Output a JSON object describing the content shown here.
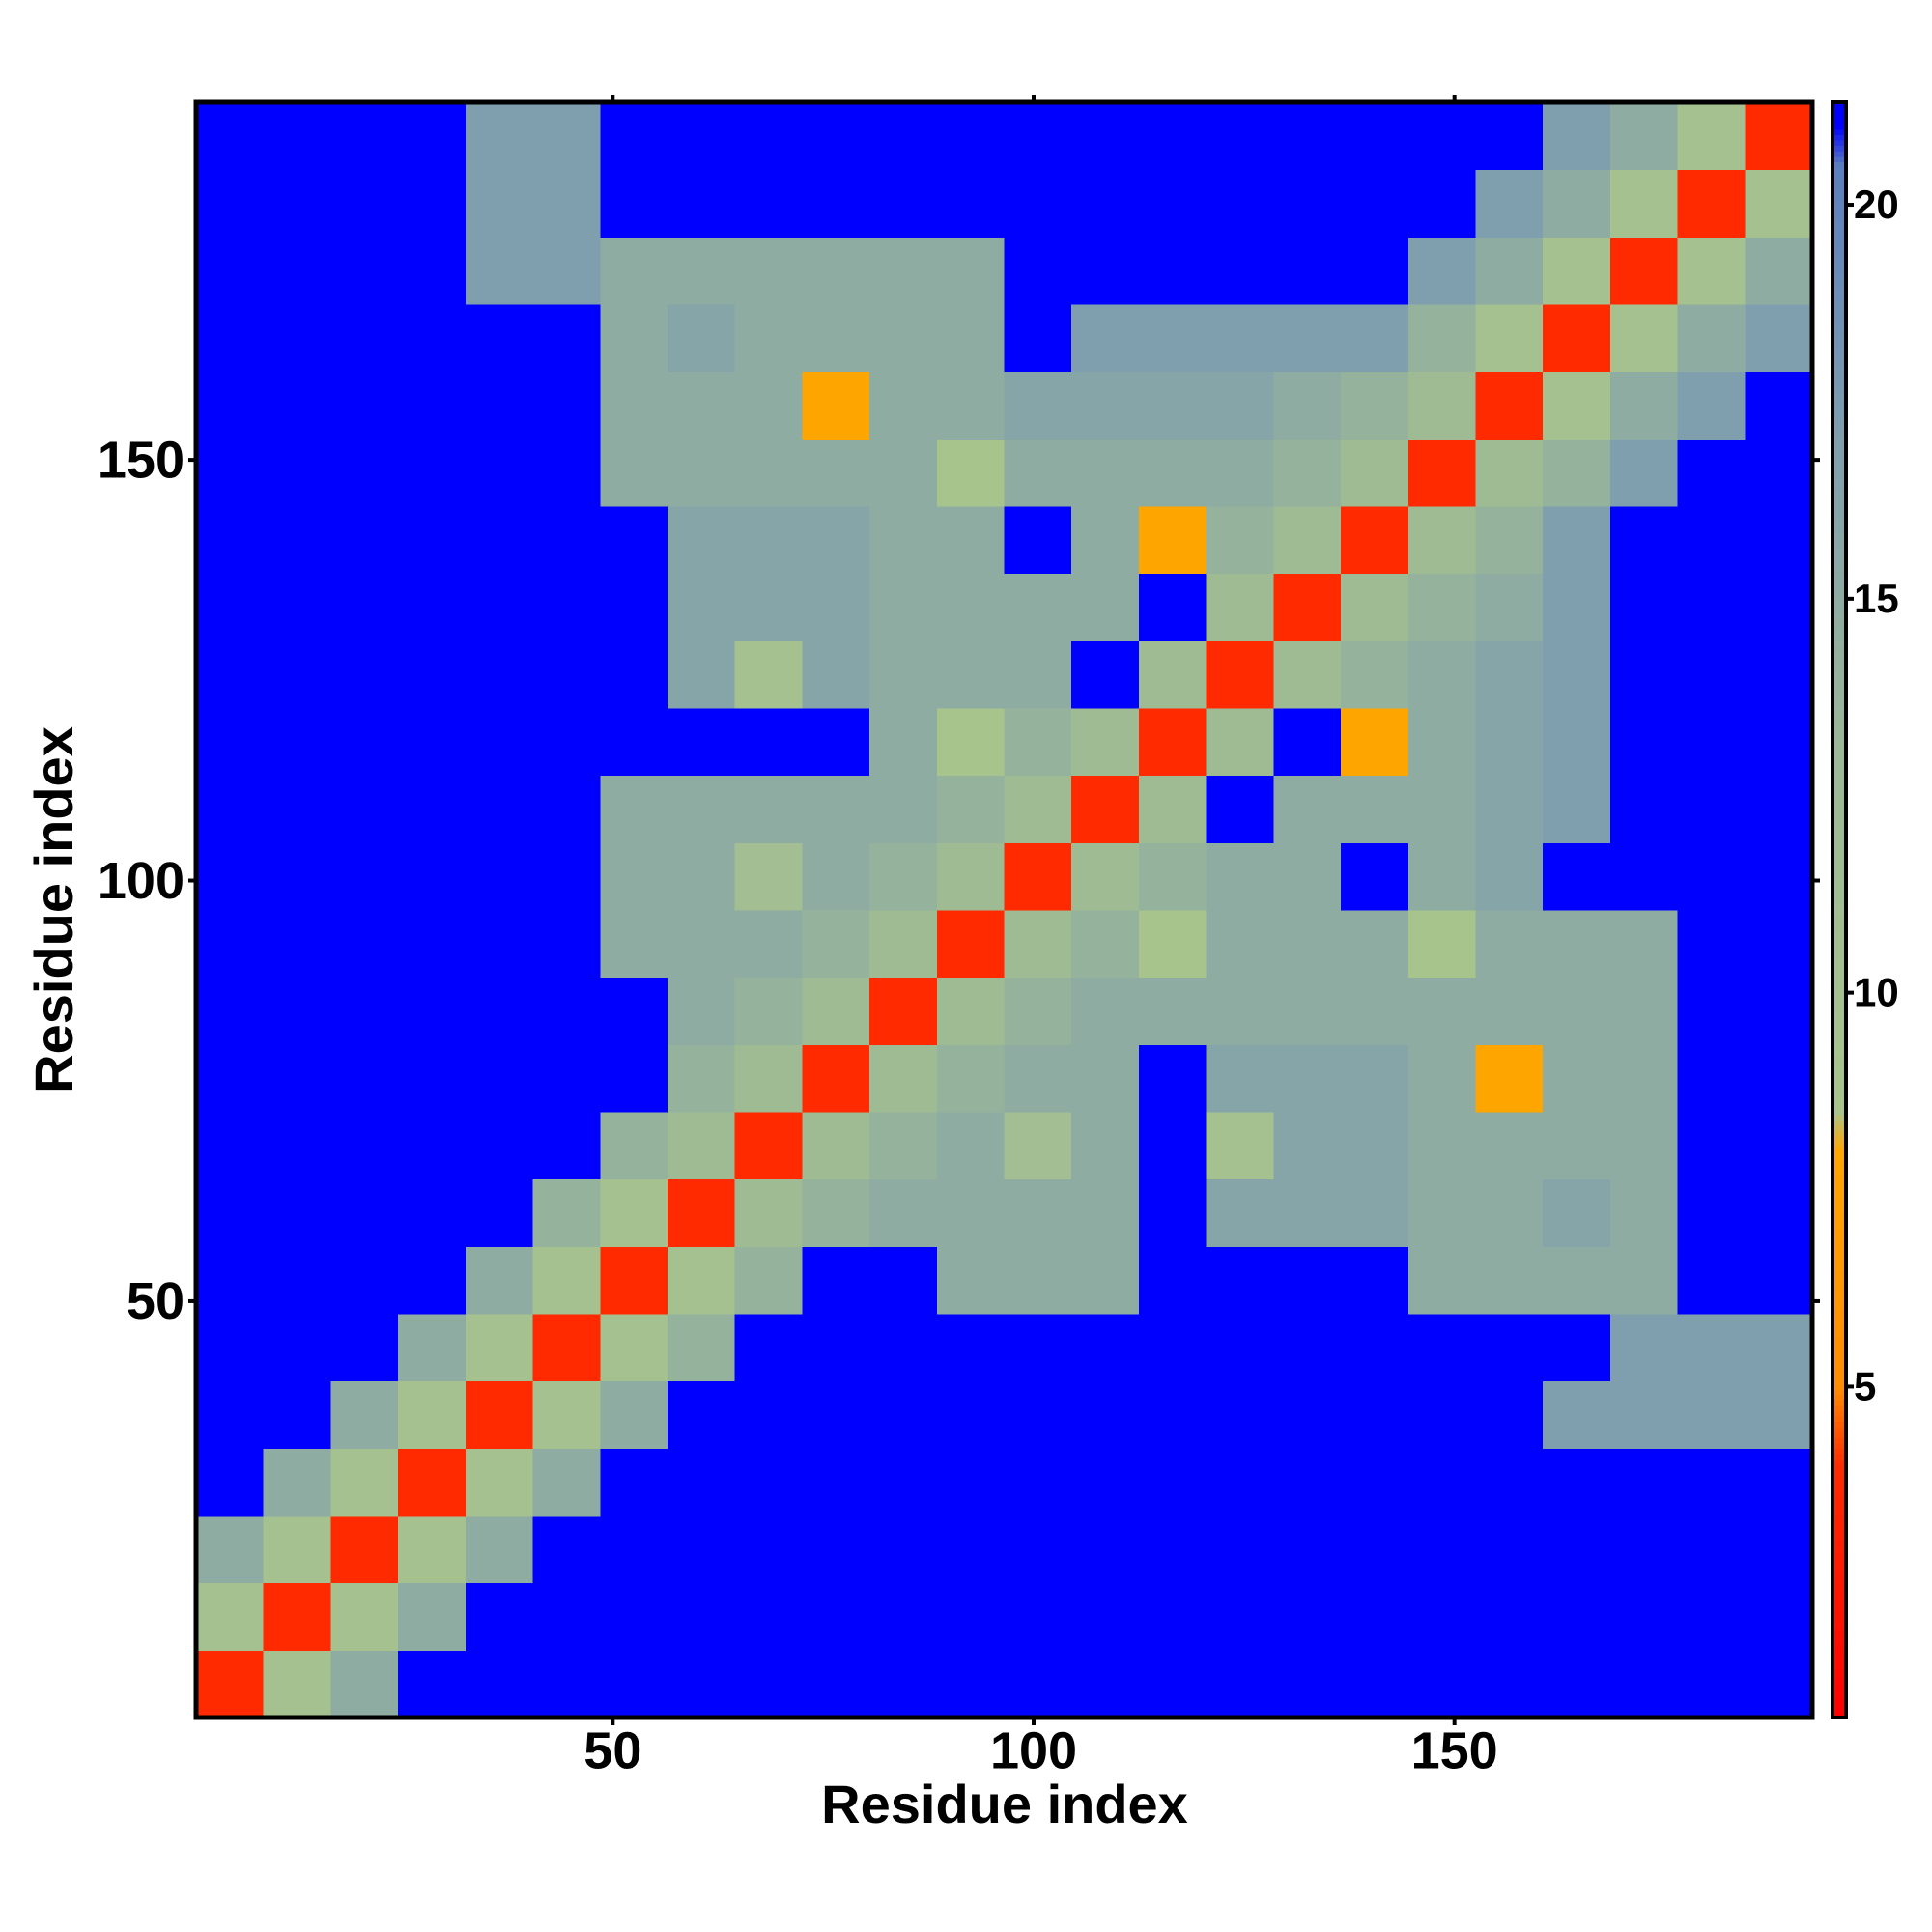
{
  "chart_data": {
    "type": "heatmap",
    "xlabel": "Residue index",
    "ylabel": "Residue index",
    "xlim": [
      0.5,
      192.5
    ],
    "ylim": [
      0.5,
      192.5
    ],
    "xticks": [
      50,
      100,
      150
    ],
    "yticks": [
      50,
      100,
      150
    ],
    "xbins": [
      0.5,
      8.5,
      16.5,
      24.5,
      32.5,
      40.5,
      48.5,
      56.5,
      64.5,
      72.5,
      80.5,
      88.5,
      96.5,
      104.5,
      112.5,
      120.5,
      128.5,
      136.5,
      144.5,
      152.5,
      160.5,
      168.5,
      176.5,
      184.5,
      192.5
    ],
    "ybins": [
      0.5,
      8.5,
      16.5,
      24.5,
      32.5,
      40.5,
      48.5,
      56.5,
      64.5,
      72.5,
      80.5,
      88.5,
      96.5,
      104.5,
      112.5,
      120.5,
      128.5,
      136.5,
      144.5,
      152.5,
      160.5,
      168.5,
      176.5,
      184.5,
      192.5
    ],
    "z": [
      [
        4,
        10,
        15,
        21,
        21,
        21,
        21,
        21,
        21,
        21,
        21,
        21,
        21,
        21,
        21,
        21,
        21,
        21,
        21,
        21,
        21,
        21,
        21,
        21
      ],
      [
        10,
        4,
        10,
        15,
        21,
        21,
        21,
        21,
        21,
        21,
        21,
        21,
        21,
        21,
        21,
        21,
        21,
        21,
        21,
        21,
        21,
        21,
        21,
        21
      ],
      [
        15,
        10,
        4,
        10,
        15,
        21,
        21,
        21,
        21,
        21,
        21,
        21,
        21,
        21,
        21,
        21,
        21,
        21,
        21,
        21,
        21,
        21,
        21,
        21
      ],
      [
        21,
        15,
        10,
        4,
        10,
        15,
        21,
        21,
        21,
        21,
        21,
        21,
        21,
        21,
        21,
        21,
        21,
        21,
        21,
        21,
        21,
        21,
        21,
        21
      ],
      [
        21,
        21,
        15,
        10,
        4,
        10,
        15,
        21,
        21,
        21,
        21,
        21,
        21,
        21,
        21,
        21,
        21,
        21,
        21,
        21,
        17,
        17,
        17,
        17
      ],
      [
        21,
        21,
        21,
        15,
        10,
        4,
        10,
        14,
        21,
        21,
        21,
        21,
        21,
        21,
        21,
        21,
        21,
        21,
        21,
        21,
        21,
        17,
        17,
        17
      ],
      [
        21,
        21,
        21,
        21,
        15,
        10,
        4,
        10,
        14,
        21,
        21,
        15,
        15,
        15,
        21,
        21,
        21,
        21,
        15,
        15,
        15,
        15,
        21,
        21
      ],
      [
        21,
        21,
        21,
        21,
        21,
        14,
        10,
        4,
        12,
        14,
        15,
        15,
        15,
        15,
        21,
        16,
        16,
        16,
        15,
        15,
        16,
        15,
        21,
        21
      ],
      [
        21,
        21,
        21,
        21,
        21,
        21,
        14,
        12,
        4,
        12,
        14,
        15,
        11,
        15,
        21,
        10,
        16,
        16,
        15,
        15,
        15,
        15,
        21,
        21
      ],
      [
        21,
        21,
        21,
        21,
        21,
        21,
        21,
        14,
        12,
        4,
        12,
        14,
        15,
        15,
        21,
        16,
        16,
        16,
        15,
        8,
        15,
        15,
        21,
        21
      ],
      [
        21,
        21,
        21,
        21,
        21,
        21,
        21,
        15,
        14,
        12,
        4,
        12,
        14,
        15,
        15,
        15,
        15,
        15,
        15,
        15,
        15,
        15,
        21,
        21
      ],
      [
        21,
        21,
        21,
        21,
        21,
        21,
        15,
        15,
        15,
        14,
        12,
        4,
        12,
        14,
        9,
        15,
        15,
        15,
        9,
        15,
        15,
        15,
        21,
        21
      ],
      [
        21,
        21,
        21,
        21,
        21,
        21,
        15,
        15,
        11,
        15,
        14,
        12,
        4,
        12,
        14,
        15,
        15,
        21,
        15,
        16,
        21,
        21,
        21,
        21
      ],
      [
        21,
        21,
        21,
        21,
        21,
        21,
        15,
        15,
        15,
        15,
        15,
        14,
        12,
        4,
        12,
        21,
        15,
        15,
        15,
        16,
        17,
        21,
        21,
        21
      ],
      [
        21,
        21,
        21,
        21,
        21,
        21,
        21,
        21,
        21,
        21,
        15,
        9,
        14,
        12,
        4,
        12,
        21,
        8,
        15,
        16,
        17,
        21,
        21,
        21
      ],
      [
        21,
        21,
        21,
        21,
        21,
        21,
        21,
        16,
        10,
        16,
        15,
        15,
        15,
        21,
        12,
        4,
        12,
        14,
        15,
        16,
        17,
        21,
        21,
        21
      ],
      [
        21,
        21,
        21,
        21,
        21,
        21,
        21,
        16,
        16,
        16,
        15,
        15,
        15,
        15,
        21,
        12,
        4,
        12,
        14,
        15,
        17,
        21,
        21,
        21
      ],
      [
        21,
        21,
        21,
        21,
        21,
        21,
        21,
        16,
        16,
        16,
        15,
        15,
        21,
        15,
        8,
        14,
        12,
        4,
        12,
        14,
        17,
        21,
        21,
        21
      ],
      [
        21,
        21,
        21,
        21,
        21,
        21,
        15,
        15,
        15,
        15,
        15,
        9,
        15,
        15,
        15,
        15,
        14,
        12,
        4,
        12,
        14,
        17,
        21,
        21
      ],
      [
        21,
        21,
        21,
        21,
        21,
        21,
        15,
        15,
        15,
        8,
        15,
        15,
        16,
        16,
        16,
        16,
        15,
        14,
        12,
        4,
        10,
        15,
        17,
        21
      ],
      [
        21,
        21,
        21,
        21,
        21,
        21,
        15,
        16,
        15,
        15,
        15,
        15,
        21,
        17,
        17,
        17,
        17,
        17,
        14,
        10,
        4,
        10,
        15,
        17
      ],
      [
        21,
        21,
        21,
        21,
        17,
        17,
        15,
        15,
        15,
        15,
        15,
        15,
        21,
        21,
        21,
        21,
        21,
        21,
        17,
        15,
        10,
        4,
        10,
        15
      ],
      [
        21,
        21,
        21,
        21,
        17,
        17,
        21,
        21,
        21,
        21,
        21,
        21,
        21,
        21,
        21,
        21,
        21,
        21,
        21,
        17,
        15,
        10,
        4,
        10
      ],
      [
        21,
        21,
        21,
        21,
        17,
        17,
        21,
        21,
        21,
        21,
        21,
        21,
        21,
        21,
        21,
        21,
        21,
        21,
        21,
        21,
        17,
        15,
        10,
        4
      ]
    ],
    "zlim": [
      0.8,
      21.3
    ],
    "zticks": [
      5,
      10,
      15,
      20
    ],
    "colorscale": [
      [
        0.8,
        "#ff0000"
      ],
      [
        4,
        "#ff2a00"
      ],
      [
        5,
        "#ff8c00"
      ],
      [
        8,
        "#ffa500"
      ],
      [
        8.5,
        "#a9c58c"
      ],
      [
        13,
        "#9cb896"
      ],
      [
        17,
        "#7f9fae"
      ],
      [
        20.5,
        "#5b7fbf"
      ],
      [
        21,
        "#0000ff"
      ]
    ]
  }
}
